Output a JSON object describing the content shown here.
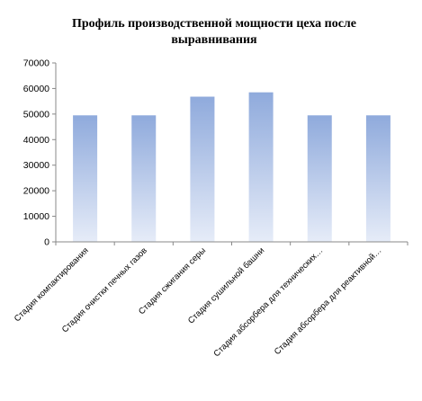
{
  "chart_data": {
    "type": "bar",
    "title_lines": [
      "Профиль производственной мощности цеха после",
      "выравнивания"
    ],
    "categories": [
      "Стадия компактирования",
      "Стадия очистки печных газов",
      "Стадия сжигания серы",
      "Стадия сушильной башни",
      "Стадия абсорбера для технических…",
      "Стадия абсорбера для реактивной…"
    ],
    "values": [
      49500,
      49500,
      56800,
      58500,
      49500,
      49500
    ],
    "ylim": [
      0,
      70000
    ],
    "yticks": [
      0,
      10000,
      20000,
      30000,
      40000,
      50000,
      60000,
      70000
    ],
    "grid": false,
    "legend": "none",
    "bar_color_top": "#8faadc",
    "bar_color_bottom": "#e6ecf8"
  }
}
